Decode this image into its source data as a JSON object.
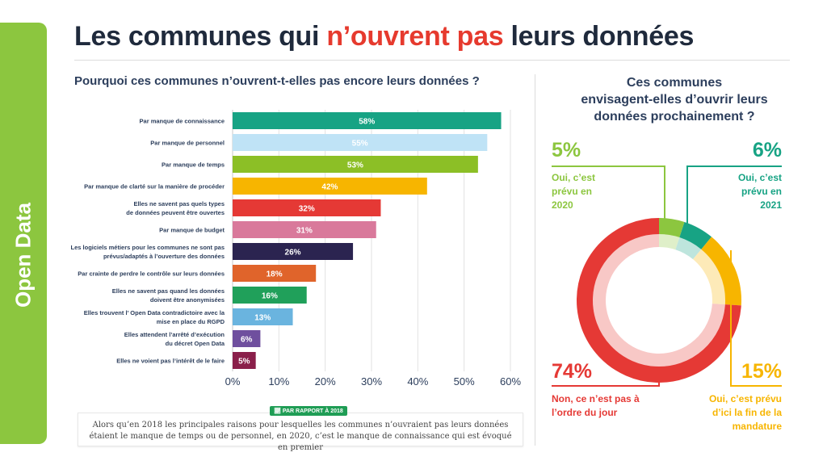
{
  "sidebar": {
    "label": "Open Data"
  },
  "header": {
    "title_pre": "Les communes qui ",
    "title_highlight": "n’ouvrent pas",
    "title_post": " leurs données"
  },
  "chart_data": [
    {
      "type": "bar",
      "orientation": "horizontal",
      "title": "Pourquoi ces communes n’ouvrent-t-elles pas encore leurs données ?",
      "categories": [
        [
          "Par manque de connaissance"
        ],
        [
          "Par manque de personnel"
        ],
        [
          "Par manque de temps"
        ],
        [
          "Par manque de clarté sur la manière de procéder"
        ],
        [
          "Elles ne savent pas quels types",
          "de données peuvent être ouvertes"
        ],
        [
          "Par manque de budget"
        ],
        [
          "Les logiciels métiers pour les communes ne sont pas",
          "prévus/adaptés à l’ouverture des données"
        ],
        [
          "Par crainte de perdre le contrôle sur leurs données"
        ],
        [
          "Elles ne savent pas quand les données",
          "doivent être anonymisées"
        ],
        [
          "Elles trouvent l’ Open Data contradictoire avec la",
          "mise en place du RGPD"
        ],
        [
          "Elles attendent l’arrêté d’exécution",
          "du décret Open Data"
        ],
        [
          "Elles ne voient pas l’intérêt de le faire"
        ]
      ],
      "values": [
        58,
        55,
        53,
        42,
        32,
        31,
        26,
        18,
        16,
        13,
        6,
        5
      ],
      "value_labels": [
        "58%",
        "55%",
        "53%",
        "42%",
        "32%",
        "31%",
        "26%",
        "18%",
        "16%",
        "13%",
        "6%",
        "5%"
      ],
      "colors": [
        "#17a384",
        "#bfe3f6",
        "#8cbf26",
        "#f7b500",
        "#e53935",
        "#d9799b",
        "#2b2450",
        "#e0642b",
        "#20a05a",
        "#6ab4df",
        "#6f4f9e",
        "#8a1f4a"
      ],
      "label_colors": [
        "#ffffff",
        "#ffffff",
        "#ffffff",
        "#ffffff",
        "#ffffff",
        "#ffffff",
        "#ffffff",
        "#ffffff",
        "#ffffff",
        "#ffffff",
        "#ffffff",
        "#ffffff"
      ],
      "xlim": [
        0,
        60
      ],
      "xticks": [
        0,
        10,
        20,
        30,
        40,
        50,
        60
      ],
      "xtick_labels": [
        "0%",
        "10%",
        "20%",
        "30%",
        "40%",
        "50%",
        "60%"
      ],
      "grid": true
    },
    {
      "type": "pie",
      "style": "donut",
      "title": "Ces communes envisagent-elles d’ouvrir leurs données prochainement ?",
      "slices": [
        {
          "label": "Oui, c’est prévu en 2020",
          "value": 5,
          "value_label": "5%",
          "color": "#8cc63f"
        },
        {
          "label": "Oui, c’est prévu en 2021",
          "value": 6,
          "value_label": "6%",
          "color": "#17a384"
        },
        {
          "label": "Oui, c’est prévu d’ici la fin de la mandature",
          "value": 15,
          "value_label": "15%",
          "color": "#f7b500"
        },
        {
          "label": "Non, ce n’est pas à l’ordre du jour",
          "value": 74,
          "value_label": "74%",
          "color": "#e53935"
        }
      ]
    }
  ],
  "right_title_lines": [
    "Ces communes",
    "envisagent-elles d’ouvrir leurs",
    "données prochainement ?"
  ],
  "donut_labels": {
    "s2020": {
      "pct": "5%",
      "lines": [
        "Oui, c’est",
        "prévu en",
        "2020"
      ]
    },
    "s2021": {
      "pct": "6%",
      "lines": [
        "Oui, c’est",
        "prévu en",
        "2021"
      ]
    },
    "mandature": {
      "pct": "15%",
      "lines": [
        "Oui, c’est prévu",
        "d’ici la fin de la",
        "mandature"
      ]
    },
    "non": {
      "pct": "74%",
      "lines": [
        "Non, ce n’est pas à",
        "l’ordre du jour"
      ]
    }
  },
  "note": {
    "badge": "PAR RAPPORT À 2018",
    "text": "Alors qu’en 2018 les principales raisons pour lesquelles les communes n’ouvraient pas leurs données étaient le manque de temps ou de personnel, en 2020, c’est le manque de connaissance qui est évoqué en premier"
  }
}
